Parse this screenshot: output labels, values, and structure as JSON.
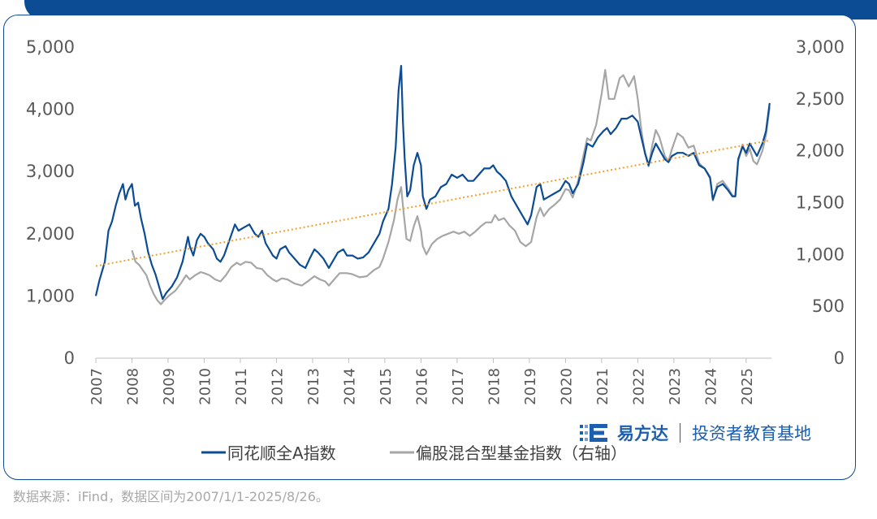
{
  "chart_data": {
    "type": "line",
    "title": "",
    "x_ticks": [
      "2007",
      "2008",
      "2009",
      "2010",
      "2011",
      "2012",
      "2013",
      "2014",
      "2015",
      "2016",
      "2017",
      "2018",
      "2019",
      "2020",
      "2021",
      "2022",
      "2023",
      "2024",
      "2025"
    ],
    "y_left": {
      "ticks": [
        "0",
        "1,000",
        "2,000",
        "3,000",
        "4,000",
        "5,000"
      ],
      "lim": [
        0,
        5000
      ]
    },
    "y_right": {
      "ticks": [
        "0",
        "500",
        "1,000",
        "1,500",
        "2,000",
        "2,500",
        "3,000"
      ],
      "lim": [
        0,
        3000
      ]
    },
    "legend_position": "bottom",
    "series": [
      {
        "name": "同花顺全A指数",
        "axis": "left",
        "color": "#0b4c94",
        "points": [
          [
            2007.0,
            1000
          ],
          [
            2007.1,
            1250
          ],
          [
            2007.25,
            1550
          ],
          [
            2007.35,
            2050
          ],
          [
            2007.45,
            2200
          ],
          [
            2007.55,
            2450
          ],
          [
            2007.65,
            2650
          ],
          [
            2007.75,
            2800
          ],
          [
            2007.82,
            2550
          ],
          [
            2007.9,
            2700
          ],
          [
            2008.0,
            2800
          ],
          [
            2008.08,
            2450
          ],
          [
            2008.17,
            2500
          ],
          [
            2008.25,
            2250
          ],
          [
            2008.35,
            2000
          ],
          [
            2008.45,
            1700
          ],
          [
            2008.55,
            1500
          ],
          [
            2008.65,
            1350
          ],
          [
            2008.75,
            1150
          ],
          [
            2008.85,
            950
          ],
          [
            2008.95,
            1050
          ],
          [
            2009.1,
            1150
          ],
          [
            2009.25,
            1300
          ],
          [
            2009.4,
            1550
          ],
          [
            2009.55,
            1950
          ],
          [
            2009.6,
            1800
          ],
          [
            2009.7,
            1650
          ],
          [
            2009.8,
            1900
          ],
          [
            2009.9,
            2000
          ],
          [
            2010.0,
            1950
          ],
          [
            2010.1,
            1850
          ],
          [
            2010.25,
            1750
          ],
          [
            2010.35,
            1600
          ],
          [
            2010.45,
            1550
          ],
          [
            2010.55,
            1650
          ],
          [
            2010.7,
            1900
          ],
          [
            2010.85,
            2150
          ],
          [
            2010.95,
            2050
          ],
          [
            2011.1,
            2100
          ],
          [
            2011.25,
            2150
          ],
          [
            2011.4,
            2000
          ],
          [
            2011.5,
            1950
          ],
          [
            2011.6,
            2050
          ],
          [
            2011.7,
            1850
          ],
          [
            2011.8,
            1750
          ],
          [
            2011.9,
            1650
          ],
          [
            2012.0,
            1600
          ],
          [
            2012.1,
            1750
          ],
          [
            2012.25,
            1800
          ],
          [
            2012.35,
            1700
          ],
          [
            2012.5,
            1600
          ],
          [
            2012.65,
            1500
          ],
          [
            2012.8,
            1450
          ],
          [
            2012.92,
            1600
          ],
          [
            2013.05,
            1750
          ],
          [
            2013.15,
            1700
          ],
          [
            2013.3,
            1600
          ],
          [
            2013.45,
            1450
          ],
          [
            2013.55,
            1550
          ],
          [
            2013.7,
            1700
          ],
          [
            2013.85,
            1750
          ],
          [
            2013.95,
            1650
          ],
          [
            2014.1,
            1650
          ],
          [
            2014.25,
            1600
          ],
          [
            2014.4,
            1620
          ],
          [
            2014.55,
            1700
          ],
          [
            2014.7,
            1850
          ],
          [
            2014.85,
            2000
          ],
          [
            2014.95,
            2200
          ],
          [
            2015.1,
            2400
          ],
          [
            2015.2,
            2800
          ],
          [
            2015.3,
            3400
          ],
          [
            2015.38,
            4300
          ],
          [
            2015.45,
            4700
          ],
          [
            2015.5,
            3800
          ],
          [
            2015.55,
            3200
          ],
          [
            2015.62,
            2600
          ],
          [
            2015.7,
            2700
          ],
          [
            2015.8,
            3100
          ],
          [
            2015.9,
            3300
          ],
          [
            2016.0,
            3100
          ],
          [
            2016.05,
            2600
          ],
          [
            2016.15,
            2400
          ],
          [
            2016.25,
            2550
          ],
          [
            2016.4,
            2600
          ],
          [
            2016.55,
            2750
          ],
          [
            2016.7,
            2800
          ],
          [
            2016.85,
            2950
          ],
          [
            2017.0,
            2900
          ],
          [
            2017.15,
            2950
          ],
          [
            2017.3,
            2850
          ],
          [
            2017.45,
            2850
          ],
          [
            2017.6,
            2950
          ],
          [
            2017.75,
            3050
          ],
          [
            2017.9,
            3050
          ],
          [
            2018.0,
            3100
          ],
          [
            2018.1,
            3000
          ],
          [
            2018.2,
            2950
          ],
          [
            2018.35,
            2850
          ],
          [
            2018.5,
            2600
          ],
          [
            2018.65,
            2450
          ],
          [
            2018.8,
            2300
          ],
          [
            2018.95,
            2150
          ],
          [
            2019.05,
            2300
          ],
          [
            2019.2,
            2750
          ],
          [
            2019.3,
            2800
          ],
          [
            2019.4,
            2550
          ],
          [
            2019.55,
            2600
          ],
          [
            2019.7,
            2650
          ],
          [
            2019.85,
            2700
          ],
          [
            2020.0,
            2850
          ],
          [
            2020.1,
            2800
          ],
          [
            2020.2,
            2650
          ],
          [
            2020.35,
            2800
          ],
          [
            2020.5,
            3150
          ],
          [
            2020.6,
            3450
          ],
          [
            2020.75,
            3400
          ],
          [
            2020.9,
            3550
          ],
          [
            2021.05,
            3650
          ],
          [
            2021.15,
            3700
          ],
          [
            2021.25,
            3600
          ],
          [
            2021.4,
            3700
          ],
          [
            2021.55,
            3850
          ],
          [
            2021.7,
            3850
          ],
          [
            2021.85,
            3900
          ],
          [
            2022.0,
            3800
          ],
          [
            2022.1,
            3550
          ],
          [
            2022.2,
            3300
          ],
          [
            2022.3,
            3100
          ],
          [
            2022.4,
            3300
          ],
          [
            2022.5,
            3450
          ],
          [
            2022.6,
            3350
          ],
          [
            2022.75,
            3200
          ],
          [
            2022.85,
            3150
          ],
          [
            2022.95,
            3250
          ],
          [
            2023.1,
            3300
          ],
          [
            2023.25,
            3300
          ],
          [
            2023.4,
            3250
          ],
          [
            2023.55,
            3300
          ],
          [
            2023.7,
            3100
          ],
          [
            2023.85,
            3050
          ],
          [
            2024.0,
            2900
          ],
          [
            2024.08,
            2550
          ],
          [
            2024.2,
            2750
          ],
          [
            2024.35,
            2800
          ],
          [
            2024.5,
            2700
          ],
          [
            2024.62,
            2600
          ],
          [
            2024.7,
            2600
          ],
          [
            2024.78,
            3200
          ],
          [
            2024.9,
            3400
          ],
          [
            2025.0,
            3300
          ],
          [
            2025.1,
            3450
          ],
          [
            2025.2,
            3350
          ],
          [
            2025.3,
            3250
          ],
          [
            2025.45,
            3450
          ],
          [
            2025.55,
            3650
          ],
          [
            2025.65,
            4100
          ]
        ]
      },
      {
        "name": "偏股混合型基金指数（右轴）",
        "axis": "right",
        "color": "#a6a6a6",
        "points": [
          [
            2008.0,
            1040
          ],
          [
            2008.1,
            930
          ],
          [
            2008.2,
            900
          ],
          [
            2008.3,
            850
          ],
          [
            2008.4,
            800
          ],
          [
            2008.5,
            700
          ],
          [
            2008.6,
            620
          ],
          [
            2008.7,
            560
          ],
          [
            2008.8,
            520
          ],
          [
            2008.9,
            560
          ],
          [
            2009.05,
            610
          ],
          [
            2009.2,
            650
          ],
          [
            2009.35,
            720
          ],
          [
            2009.5,
            800
          ],
          [
            2009.6,
            760
          ],
          [
            2009.75,
            800
          ],
          [
            2009.9,
            830
          ],
          [
            2010.0,
            820
          ],
          [
            2010.15,
            800
          ],
          [
            2010.3,
            760
          ],
          [
            2010.45,
            740
          ],
          [
            2010.6,
            800
          ],
          [
            2010.75,
            880
          ],
          [
            2010.9,
            920
          ],
          [
            2011.0,
            900
          ],
          [
            2011.15,
            930
          ],
          [
            2011.3,
            920
          ],
          [
            2011.45,
            870
          ],
          [
            2011.6,
            860
          ],
          [
            2011.75,
            800
          ],
          [
            2011.9,
            760
          ],
          [
            2012.0,
            740
          ],
          [
            2012.15,
            770
          ],
          [
            2012.3,
            760
          ],
          [
            2012.5,
            720
          ],
          [
            2012.7,
            700
          ],
          [
            2012.9,
            750
          ],
          [
            2013.05,
            790
          ],
          [
            2013.2,
            760
          ],
          [
            2013.35,
            740
          ],
          [
            2013.45,
            700
          ],
          [
            2013.6,
            760
          ],
          [
            2013.75,
            820
          ],
          [
            2013.95,
            820
          ],
          [
            2014.1,
            810
          ],
          [
            2014.3,
            780
          ],
          [
            2014.5,
            790
          ],
          [
            2014.7,
            850
          ],
          [
            2014.85,
            880
          ],
          [
            2014.95,
            960
          ],
          [
            2015.1,
            1120
          ],
          [
            2015.25,
            1330
          ],
          [
            2015.35,
            1530
          ],
          [
            2015.45,
            1650
          ],
          [
            2015.52,
            1400
          ],
          [
            2015.6,
            1150
          ],
          [
            2015.7,
            1130
          ],
          [
            2015.8,
            1270
          ],
          [
            2015.9,
            1370
          ],
          [
            2016.0,
            1230
          ],
          [
            2016.05,
            1080
          ],
          [
            2016.15,
            1000
          ],
          [
            2016.3,
            1100
          ],
          [
            2016.45,
            1150
          ],
          [
            2016.6,
            1180
          ],
          [
            2016.75,
            1200
          ],
          [
            2016.9,
            1220
          ],
          [
            2017.05,
            1200
          ],
          [
            2017.2,
            1220
          ],
          [
            2017.35,
            1180
          ],
          [
            2017.5,
            1220
          ],
          [
            2017.65,
            1270
          ],
          [
            2017.8,
            1310
          ],
          [
            2017.95,
            1310
          ],
          [
            2018.05,
            1380
          ],
          [
            2018.15,
            1330
          ],
          [
            2018.3,
            1350
          ],
          [
            2018.45,
            1280
          ],
          [
            2018.6,
            1230
          ],
          [
            2018.75,
            1120
          ],
          [
            2018.9,
            1080
          ],
          [
            2019.05,
            1120
          ],
          [
            2019.2,
            1360
          ],
          [
            2019.3,
            1450
          ],
          [
            2019.4,
            1370
          ],
          [
            2019.55,
            1440
          ],
          [
            2019.7,
            1480
          ],
          [
            2019.85,
            1530
          ],
          [
            2020.0,
            1630
          ],
          [
            2020.1,
            1620
          ],
          [
            2020.2,
            1550
          ],
          [
            2020.35,
            1710
          ],
          [
            2020.5,
            1960
          ],
          [
            2020.6,
            2120
          ],
          [
            2020.7,
            2100
          ],
          [
            2020.85,
            2250
          ],
          [
            2021.0,
            2550
          ],
          [
            2021.1,
            2780
          ],
          [
            2021.2,
            2500
          ],
          [
            2021.35,
            2500
          ],
          [
            2021.5,
            2700
          ],
          [
            2021.6,
            2730
          ],
          [
            2021.75,
            2620
          ],
          [
            2021.9,
            2720
          ],
          [
            2022.0,
            2500
          ],
          [
            2022.1,
            2200
          ],
          [
            2022.2,
            1970
          ],
          [
            2022.3,
            1850
          ],
          [
            2022.4,
            2050
          ],
          [
            2022.5,
            2200
          ],
          [
            2022.6,
            2130
          ],
          [
            2022.75,
            1950
          ],
          [
            2022.85,
            1900
          ],
          [
            2022.95,
            2020
          ],
          [
            2023.1,
            2170
          ],
          [
            2023.25,
            2130
          ],
          [
            2023.4,
            2030
          ],
          [
            2023.55,
            2050
          ],
          [
            2023.7,
            1880
          ],
          [
            2023.85,
            1830
          ],
          [
            2024.0,
            1750
          ],
          [
            2024.08,
            1520
          ],
          [
            2024.2,
            1680
          ],
          [
            2024.35,
            1710
          ],
          [
            2024.5,
            1640
          ],
          [
            2024.62,
            1570
          ],
          [
            2024.7,
            1560
          ],
          [
            2024.78,
            1900
          ],
          [
            2024.9,
            2060
          ],
          [
            2025.0,
            1950
          ],
          [
            2025.1,
            2020
          ],
          [
            2025.2,
            1900
          ],
          [
            2025.3,
            1870
          ],
          [
            2025.45,
            2000
          ],
          [
            2025.55,
            2150
          ],
          [
            2025.65,
            2420
          ]
        ]
      },
      {
        "name": "trend",
        "axis": "left",
        "color": "#f0a030",
        "dashed": true,
        "points": [
          [
            2007.0,
            1480
          ],
          [
            2025.65,
            3500
          ]
        ]
      }
    ]
  },
  "legend": {
    "left": "同花顺全A指数",
    "right": "偏股混合型基金指数（右轴）"
  },
  "logo": {
    "brand": "易方达",
    "sub": "投资者教育基地"
  },
  "source": "数据来源：iFind，数据区间为2007/1/1-2025/8/26。",
  "colors": {
    "brand_blue": "#0b4c94",
    "gray": "#a6a6a6",
    "trend": "#f0a030",
    "axis_text": "#595959"
  }
}
